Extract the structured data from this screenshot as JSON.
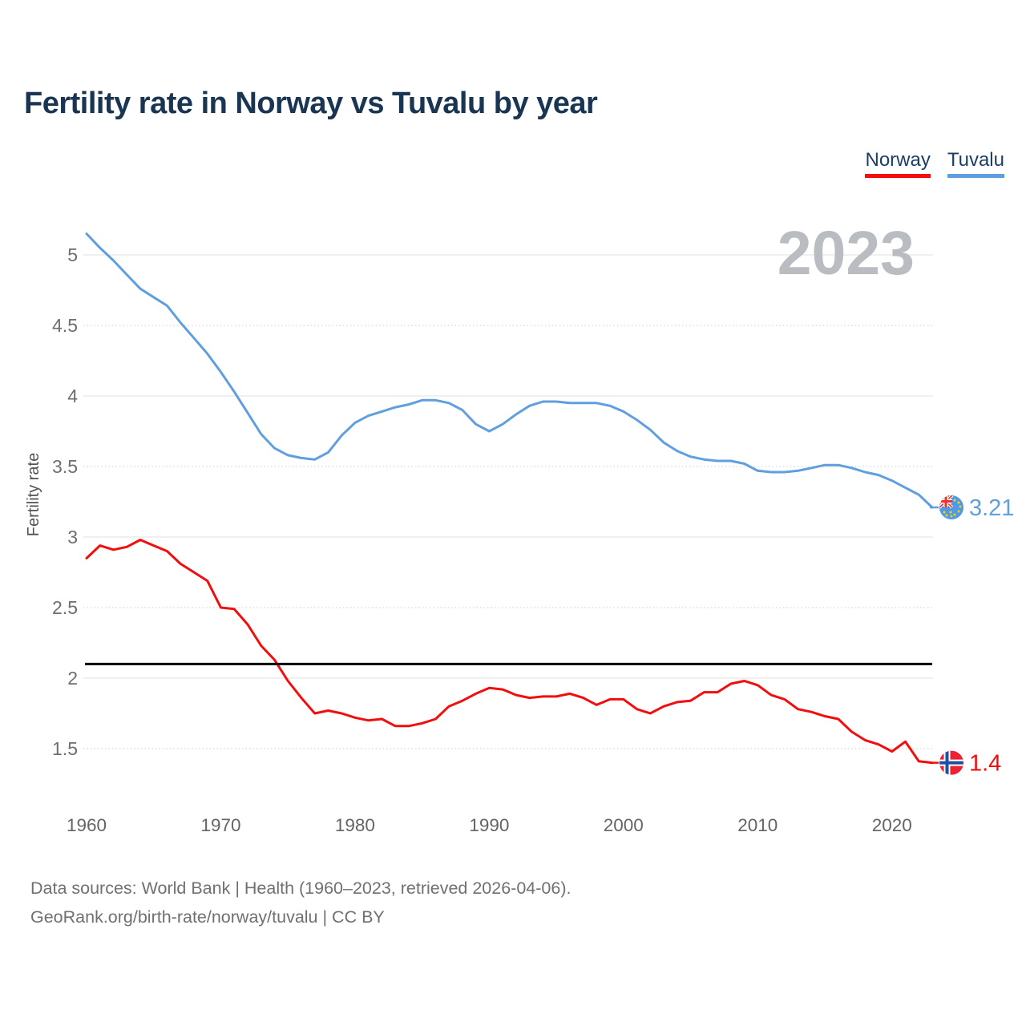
{
  "title": "Fertility rate in Norway vs Tuvalu by year",
  "watermark_year": "2023",
  "legend": {
    "items": [
      {
        "label": "Norway",
        "color": "#f40d0d"
      },
      {
        "label": "Tuvalu",
        "color": "#5f9fdf"
      }
    ]
  },
  "footer": {
    "line1": "Data sources: World Bank | Health (1960–2023, retrieved 2026-04-06).",
    "line2": "GeoRank.org/birth-rate/norway/tuvalu | CC BY"
  },
  "chart_data": {
    "type": "line",
    "title": "Fertility rate in Norway vs Tuvalu by year",
    "xlabel": "",
    "ylabel": "Fertility rate",
    "x_ticks": [
      1960,
      1970,
      1980,
      1990,
      2000,
      2010,
      2020
    ],
    "y_ticks": [
      1.5,
      2,
      2.5,
      3,
      3.5,
      4,
      4.5,
      5
    ],
    "xlim": [
      1960,
      2023
    ],
    "ylim": [
      1.17,
      5.25
    ],
    "grid": true,
    "legend_position": "top-right",
    "reference_line": {
      "value": 2.1,
      "color": "#000000"
    },
    "x": [
      1960,
      1961,
      1962,
      1963,
      1964,
      1965,
      1966,
      1967,
      1968,
      1969,
      1970,
      1971,
      1972,
      1973,
      1974,
      1975,
      1976,
      1977,
      1978,
      1979,
      1980,
      1981,
      1982,
      1983,
      1984,
      1985,
      1986,
      1987,
      1988,
      1989,
      1990,
      1991,
      1992,
      1993,
      1994,
      1995,
      1996,
      1997,
      1998,
      1999,
      2000,
      2001,
      2002,
      2003,
      2004,
      2005,
      2006,
      2007,
      2008,
      2009,
      2010,
      2011,
      2012,
      2013,
      2014,
      2015,
      2016,
      2017,
      2018,
      2019,
      2020,
      2021,
      2022,
      2023
    ],
    "series": [
      {
        "name": "Norway",
        "color": "#f40d0d",
        "end_label": "1.4",
        "flag": "norway",
        "values": [
          2.85,
          2.94,
          2.91,
          2.93,
          2.98,
          2.94,
          2.9,
          2.81,
          2.75,
          2.69,
          2.5,
          2.49,
          2.38,
          2.23,
          2.13,
          1.98,
          1.86,
          1.75,
          1.77,
          1.75,
          1.72,
          1.7,
          1.71,
          1.66,
          1.66,
          1.68,
          1.71,
          1.8,
          1.84,
          1.89,
          1.93,
          1.92,
          1.88,
          1.86,
          1.87,
          1.87,
          1.89,
          1.86,
          1.81,
          1.85,
          1.85,
          1.78,
          1.75,
          1.8,
          1.83,
          1.84,
          1.9,
          1.9,
          1.96,
          1.98,
          1.95,
          1.88,
          1.85,
          1.78,
          1.76,
          1.73,
          1.71,
          1.62,
          1.56,
          1.53,
          1.48,
          1.55,
          1.41,
          1.4
        ]
      },
      {
        "name": "Tuvalu",
        "color": "#5f9fdf",
        "end_label": "3.21",
        "flag": "tuvalu",
        "values": [
          5.15,
          5.05,
          4.96,
          4.86,
          4.76,
          4.7,
          4.64,
          4.52,
          4.41,
          4.3,
          4.17,
          4.03,
          3.88,
          3.73,
          3.63,
          3.58,
          3.56,
          3.55,
          3.6,
          3.72,
          3.81,
          3.86,
          3.89,
          3.92,
          3.94,
          3.97,
          3.97,
          3.95,
          3.9,
          3.8,
          3.75,
          3.8,
          3.87,
          3.93,
          3.96,
          3.96,
          3.95,
          3.95,
          3.95,
          3.93,
          3.89,
          3.83,
          3.76,
          3.67,
          3.61,
          3.57,
          3.55,
          3.54,
          3.54,
          3.52,
          3.47,
          3.46,
          3.46,
          3.47,
          3.49,
          3.51,
          3.51,
          3.49,
          3.46,
          3.44,
          3.4,
          3.35,
          3.3,
          3.21
        ]
      }
    ]
  }
}
